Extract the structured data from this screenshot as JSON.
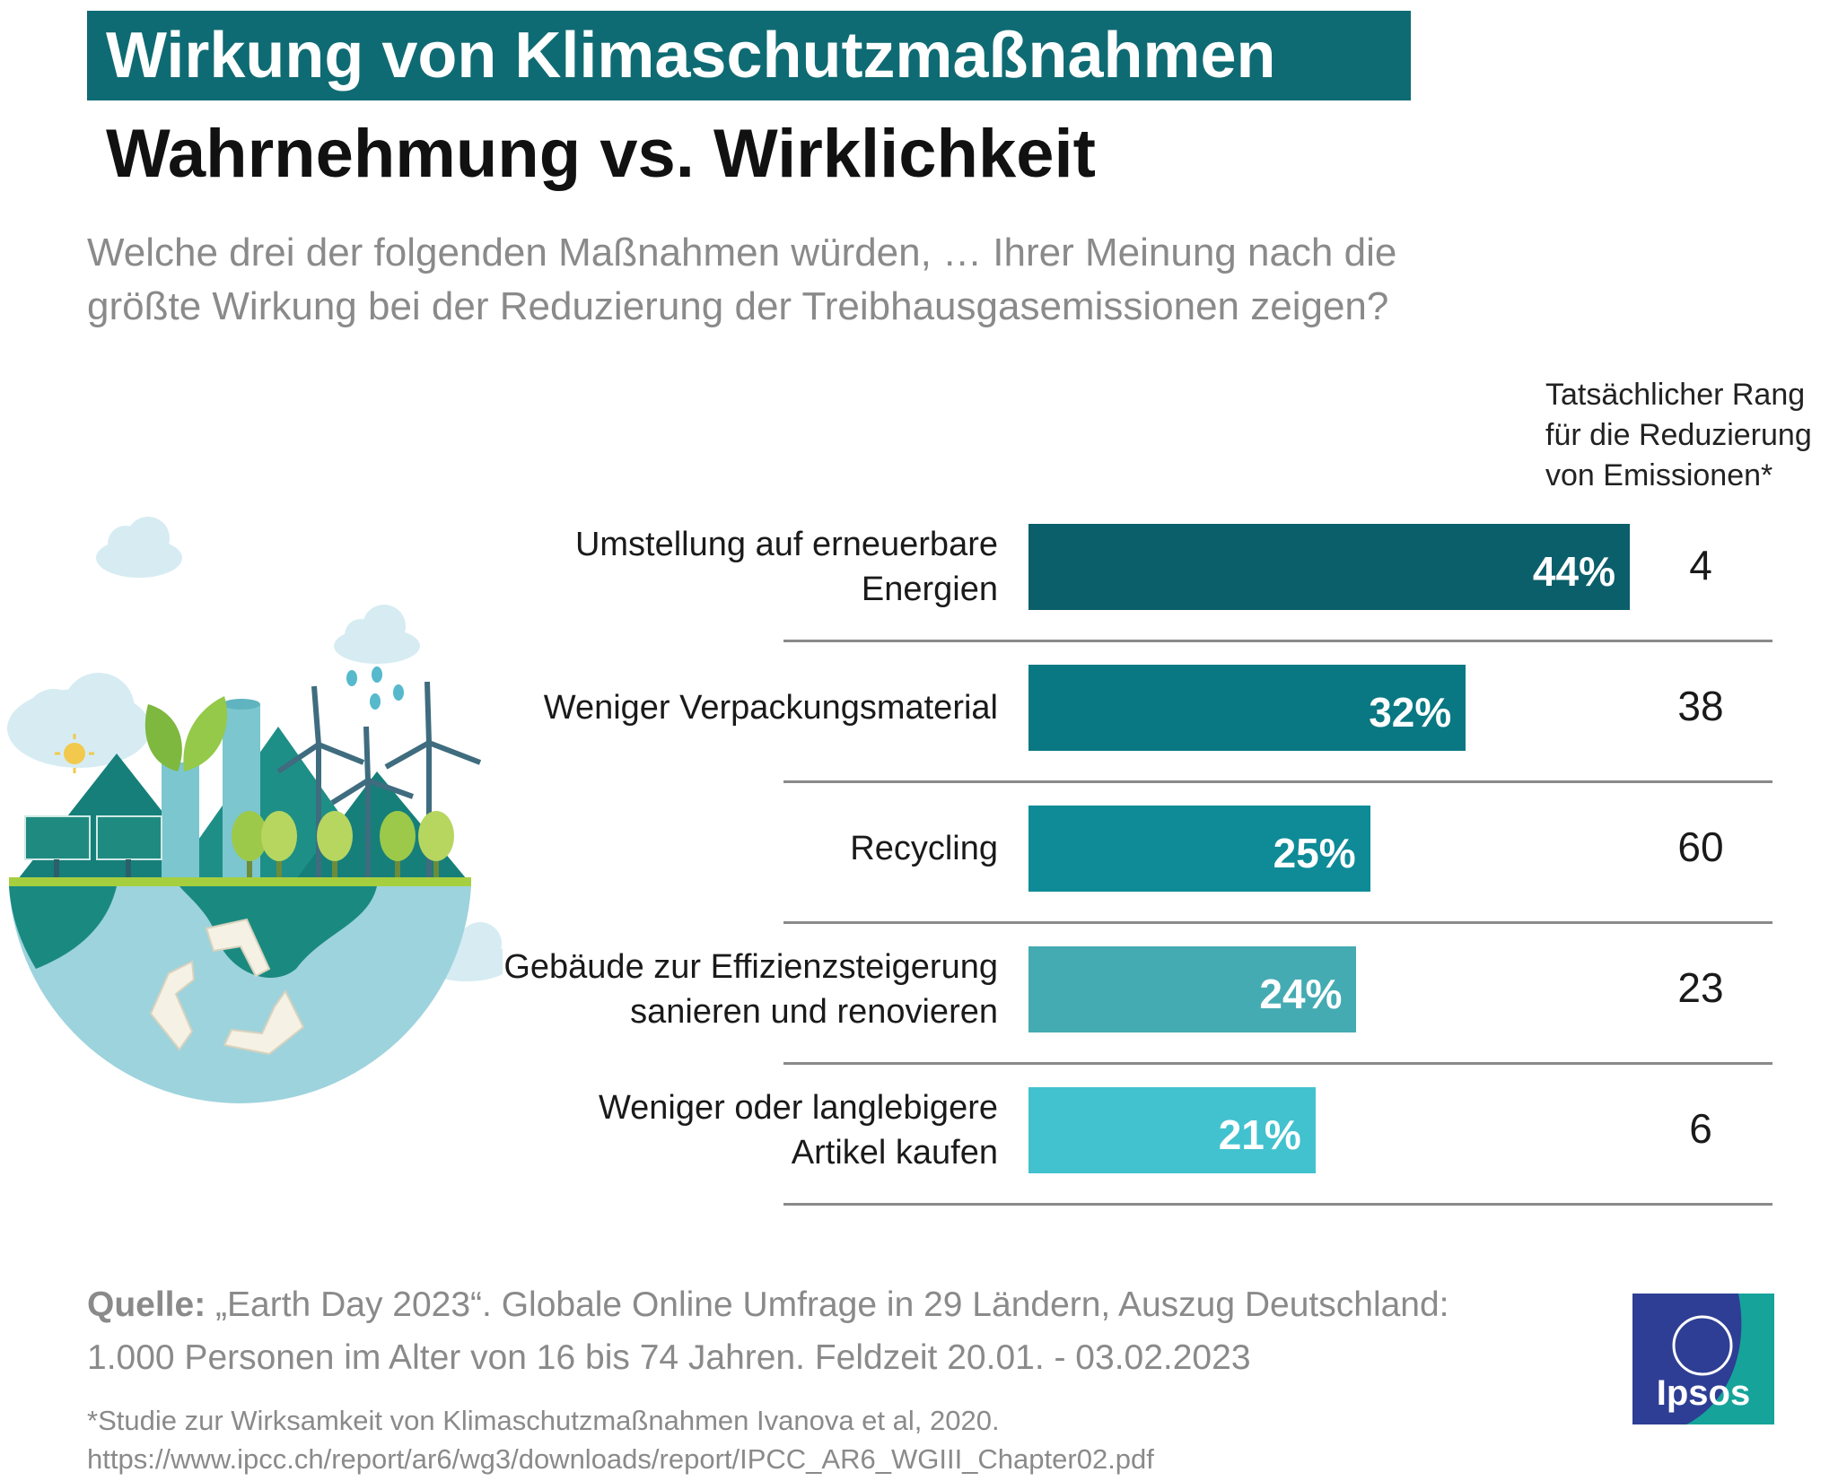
{
  "header": {
    "title": "Wirkung von Klimaschutzmaßnahmen",
    "subtitle": "Wahrnehmung vs. Wirklichkeit",
    "question_line1": "Welche drei der folgenden Maßnahmen würden, … Ihrer Meinung nach die",
    "question_line2": "größte Wirkung bei der Reduzierung der Treibhausgasemissionen zeigen?"
  },
  "rank_header": [
    "Tatsächlicher Rang",
    "für die Reduzierung",
    "von Emissionen*"
  ],
  "chart_data": {
    "type": "bar",
    "orientation": "horizontal",
    "categories": [
      [
        "Umstellung auf erneuerbare",
        "Energien"
      ],
      [
        "Weniger Verpackungsmaterial"
      ],
      [
        "Recycling"
      ],
      [
        "Gebäude zur Effizienzsteigerung",
        "sanieren und renovieren"
      ],
      [
        "Weniger oder langlebigere",
        "Artikel kaufen"
      ]
    ],
    "values": [
      44,
      32,
      25,
      24,
      21
    ],
    "value_labels": [
      "44%",
      "32%",
      "25%",
      "24%",
      "21%"
    ],
    "actual_rank": [
      "4",
      "38",
      "60",
      "23",
      "6"
    ],
    "bar_colors": [
      "#0a5f6a",
      "#097882",
      "#0e8b97",
      "#45abb3",
      "#42c2cf"
    ],
    "xlim": [
      0,
      44
    ],
    "grid": false,
    "legend": "none"
  },
  "source": {
    "label": "Quelle:",
    "line1": "„Earth Day 2023“.  Globale Online Umfrage in 29 Ländern, Auszug Deutschland:",
    "line2": "1.000 Personen im Alter von 16 bis 74 Jahren. Feldzeit 20.01. - 03.02.2023"
  },
  "footnote": {
    "line1": "*Studie zur Wirksamkeit von Klimaschutzmaßnahmen Ivanova et al, 2020.",
    "line2": "https://www.ipcc.ch/report/ar6/wg3/downloads/report/IPCC_AR6_WGIII_Chapter02.pdf"
  },
  "logo": {
    "text": "Ipsos",
    "colors": [
      "#2e3e94",
      "#15a39a"
    ]
  },
  "colors": {
    "title_bg": "#0f6b73",
    "muted_text": "#8a8a8a",
    "divider": "#8a8a8a"
  },
  "icons": [
    "eco-globe-illustration",
    "ipsos-logo"
  ]
}
